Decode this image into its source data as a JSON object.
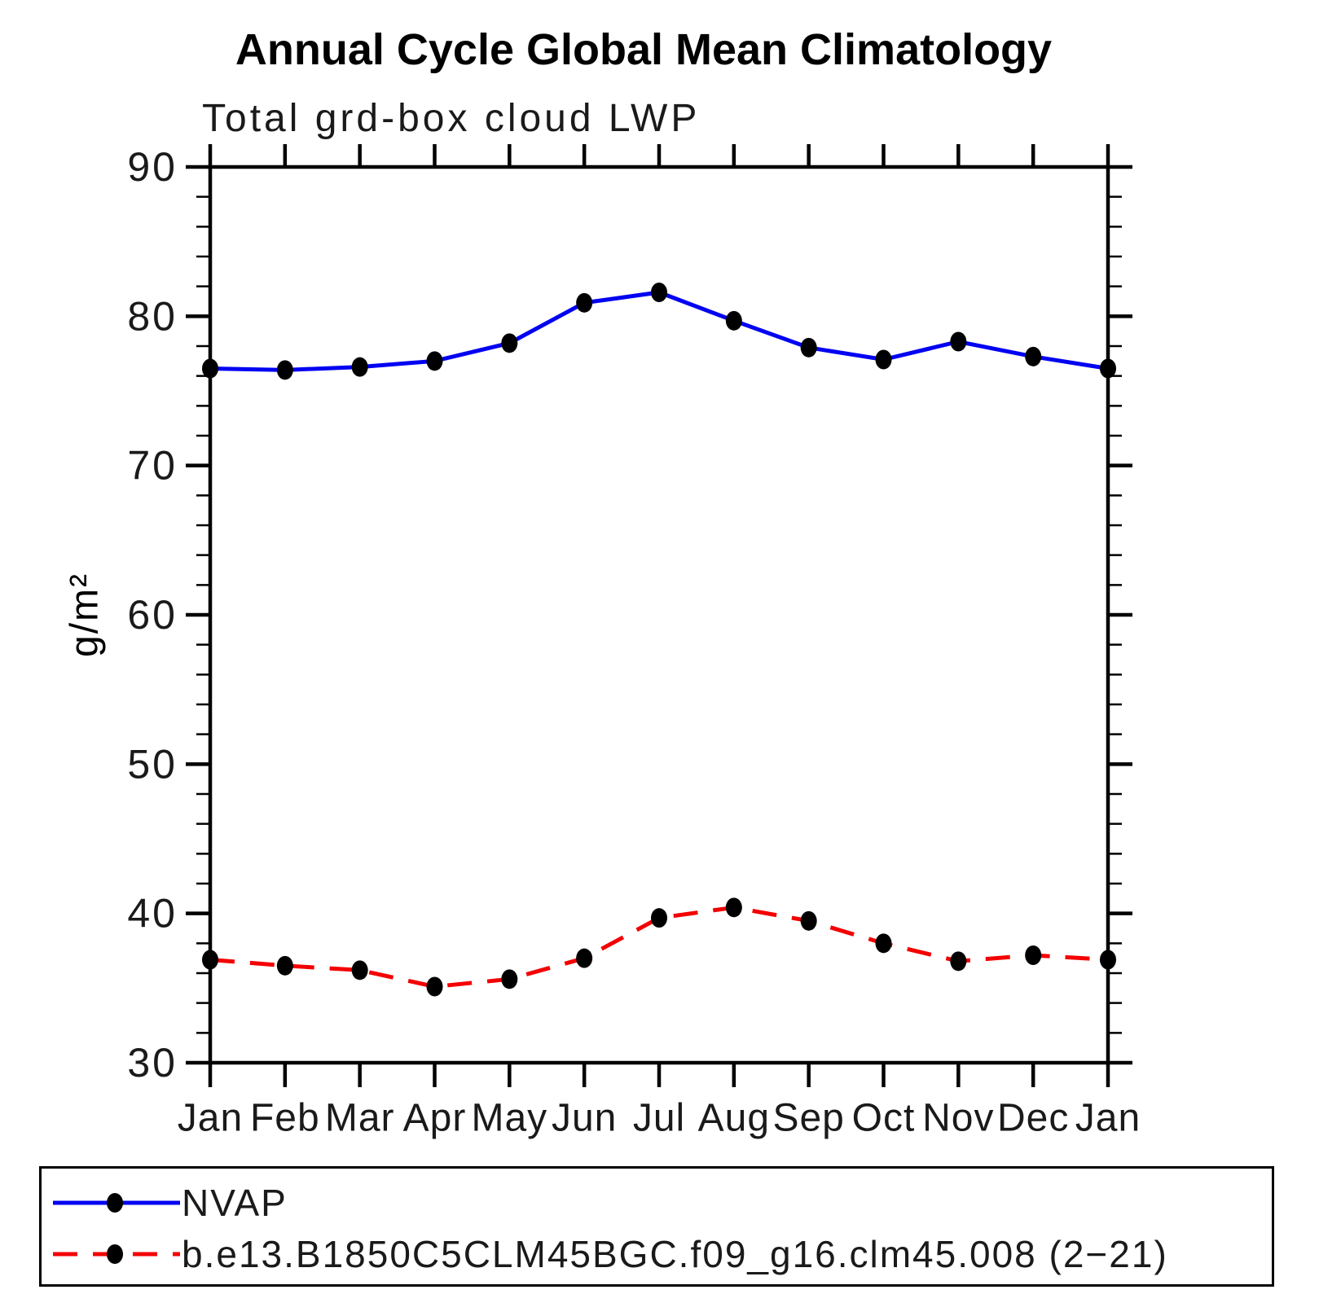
{
  "chart_data": {
    "type": "line",
    "title": "Annual Cycle Global Mean Climatology",
    "subtitle": "Total grd-box cloud LWP",
    "ylabel": "g/m²",
    "ylim": [
      30,
      90
    ],
    "ytick_major": 10,
    "ytick_minor": 2,
    "grid": false,
    "legend_position": "bottom",
    "axis_color": "#000000",
    "marker_color": "#000000",
    "categories": [
      "Jan",
      "Feb",
      "Mar",
      "Apr",
      "May",
      "Jun",
      "Jul",
      "Aug",
      "Sep",
      "Oct",
      "Nov",
      "Dec",
      "Jan"
    ],
    "series": [
      {
        "name": "NVAP",
        "color": "#0202f2",
        "line_style": "solid",
        "values": [
          76.5,
          76.4,
          76.6,
          77.0,
          78.2,
          80.9,
          81.6,
          79.7,
          77.9,
          77.1,
          78.3,
          77.3,
          76.5
        ]
      },
      {
        "name": "b.e13.B1850C5CLM45BGC.f09_g16.clm45.008 (2−21)",
        "color": "#f40000",
        "line_style": "dashed",
        "values": [
          36.9,
          36.5,
          36.2,
          35.1,
          35.6,
          37.0,
          39.7,
          40.4,
          39.5,
          38.0,
          36.8,
          37.2,
          36.9
        ]
      }
    ]
  }
}
